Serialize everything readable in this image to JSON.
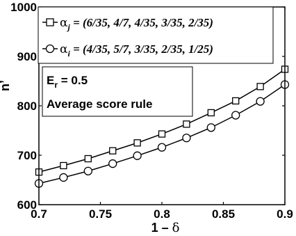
{
  "chart_data": {
    "type": "line",
    "xlabel_main": "1 – ",
    "xlabel_symbol": "δ",
    "ylabel": "n’",
    "xlim": [
      0.7,
      0.9
    ],
    "ylim": [
      600,
      1000
    ],
    "xticks": [
      "0.7",
      "0.75",
      "0.8",
      "0.85",
      "0.9"
    ],
    "xtick_values": [
      0.7,
      0.75,
      0.8,
      0.85,
      0.9
    ],
    "yticks": [
      "600",
      "700",
      "800",
      "900",
      "1000"
    ],
    "ytick_values": [
      600,
      700,
      800,
      900,
      1000
    ],
    "grid": false,
    "legend_position": "top-left",
    "x": [
      0.7,
      0.72,
      0.74,
      0.76,
      0.78,
      0.8,
      0.82,
      0.84,
      0.86,
      0.88,
      0.9
    ],
    "series": [
      {
        "legend_alpha": "α",
        "legend_sub": "j",
        "legend_tail": " = (6/35, 4/7, 4/35, 3/35, 2/35)",
        "marker": "square",
        "values": [
          666,
          679,
          693,
          709,
          725,
          743,
          763,
          786,
          810,
          839,
          874
        ]
      },
      {
        "legend_alpha": "α",
        "legend_sub": "i",
        "legend_tail": " = (4/35, 5/7, 3/35, 2/35, 1/25)",
        "marker": "circle",
        "values": [
          643,
          655,
          668,
          683,
          699,
          716,
          735,
          756,
          781,
          809,
          843
        ]
      }
    ],
    "annotation_line1_main": "E",
    "annotation_line1_sub": "r",
    "annotation_line1_tail": " = 0.5",
    "annotation_line2": "Average score rule"
  }
}
